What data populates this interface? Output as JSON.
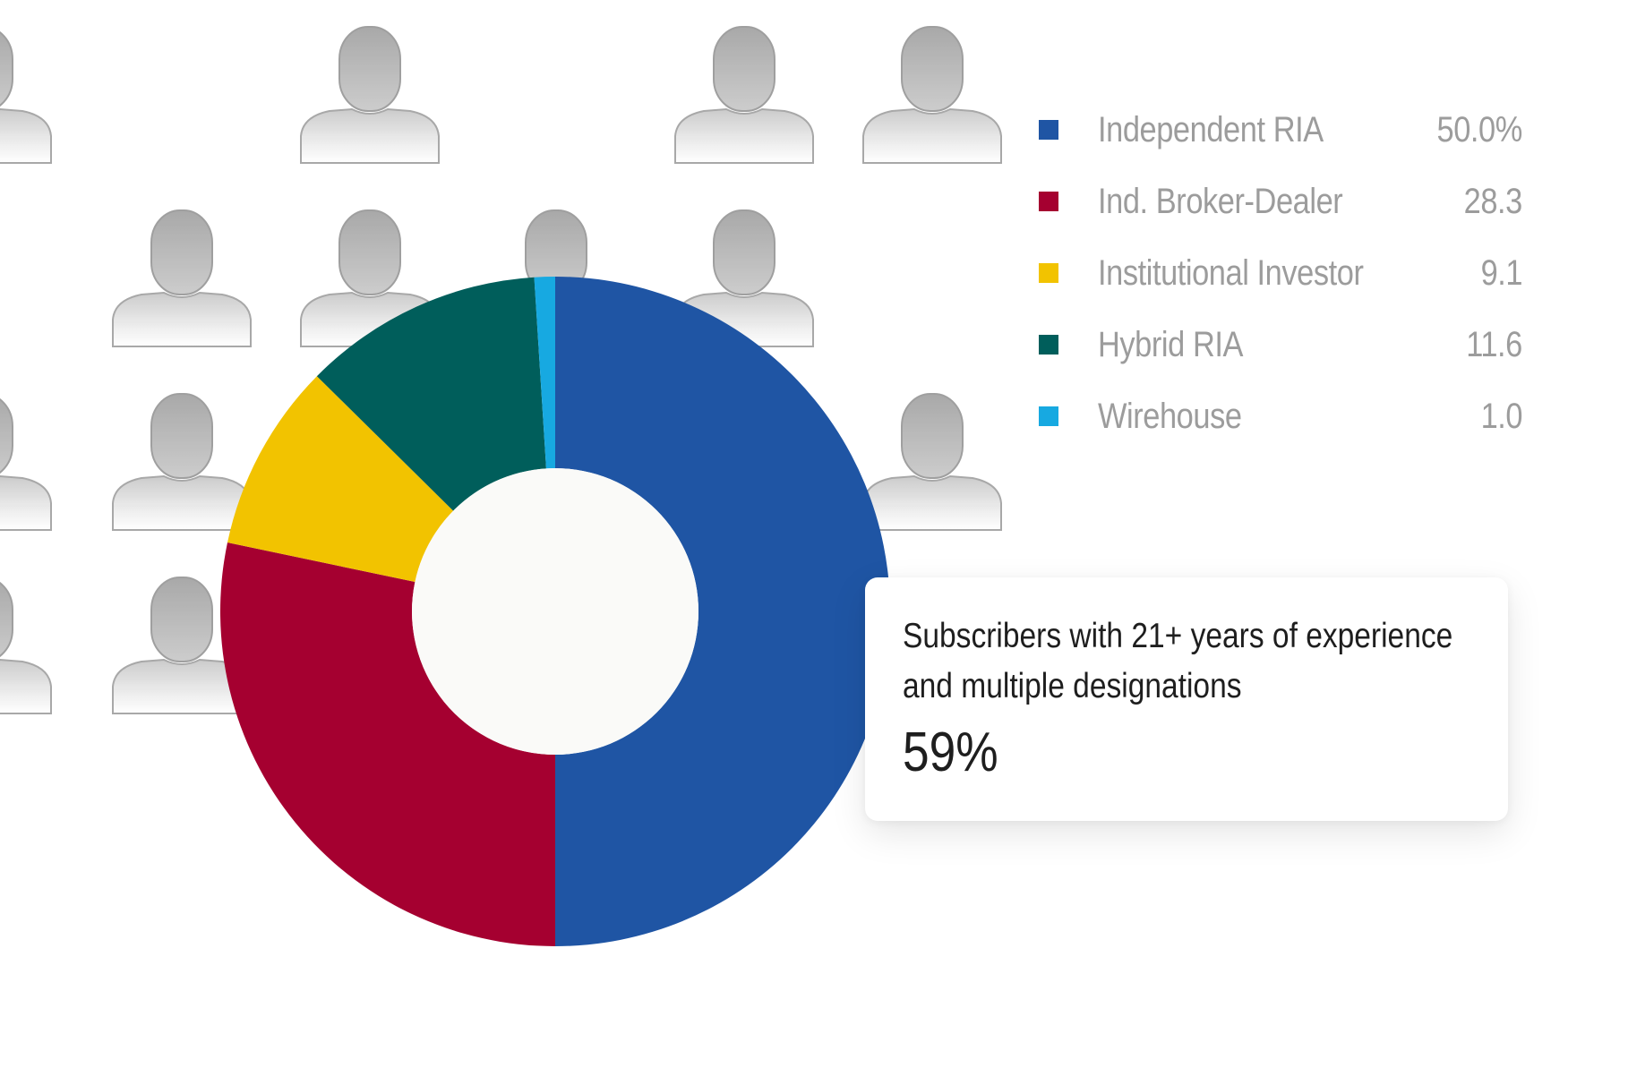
{
  "chart_data": {
    "type": "pie",
    "variant": "donut",
    "categories": [
      "Independent RIA",
      "Ind. Broker-Dealer",
      "Institutional Investor",
      "Hybrid RIA",
      "Wirehouse"
    ],
    "values": [
      50.0,
      28.3,
      9.1,
      11.6,
      1.0
    ],
    "value_labels": [
      "50.0%",
      "28.3",
      "9.1",
      "11.6",
      "1.0"
    ],
    "colors": [
      "#1f55a4",
      "#a50030",
      "#f2c300",
      "#005e5b",
      "#17a9e1"
    ],
    "center_color": "#fafaf8",
    "legend_position": "top-right"
  },
  "callout": {
    "text": "Subscribers with 21+ years of experience and multiple designations",
    "value": "59%"
  },
  "background": {
    "icon": "person-silhouette-icon",
    "icon_color": "#b9b9b9"
  }
}
